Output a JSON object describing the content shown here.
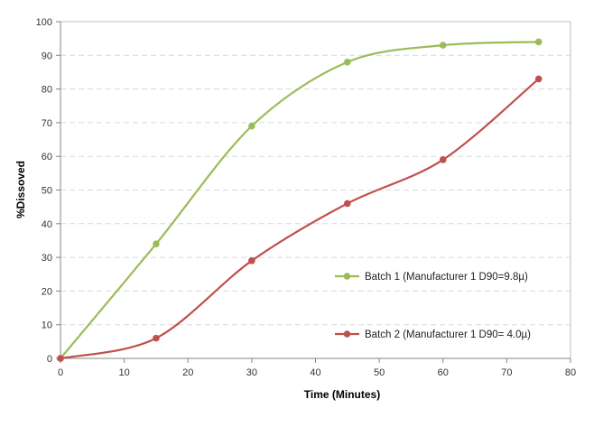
{
  "chart_data": {
    "type": "line",
    "title": "",
    "xlabel": "Time (Minutes)",
    "ylabel": "%Dissoved",
    "xlim": [
      0,
      80
    ],
    "ylim": [
      0,
      100
    ],
    "xticks": [
      "0",
      "10",
      "20",
      "30",
      "40",
      "50",
      "60",
      "70",
      "80"
    ],
    "yticks": [
      "0",
      "10",
      "20",
      "30",
      "40",
      "50",
      "60",
      "70",
      "80",
      "90",
      "100"
    ],
    "grid": "horizontal-dashed",
    "legend_placement": "right",
    "series": [
      {
        "name": "Batch 1 (Manufacturer 1 D90=9.8µ)",
        "color": "#9bbb59",
        "x": [
          0,
          15,
          30,
          45,
          60,
          75
        ],
        "y": [
          0,
          34,
          69,
          88,
          93,
          94
        ]
      },
      {
        "name": "Batch 2 (Manufacturer 1 D90= 4.0µ)",
        "color": "#c0504d",
        "x": [
          0,
          15,
          30,
          45,
          60,
          75
        ],
        "y": [
          0,
          6,
          29,
          46,
          59,
          83
        ]
      }
    ]
  }
}
